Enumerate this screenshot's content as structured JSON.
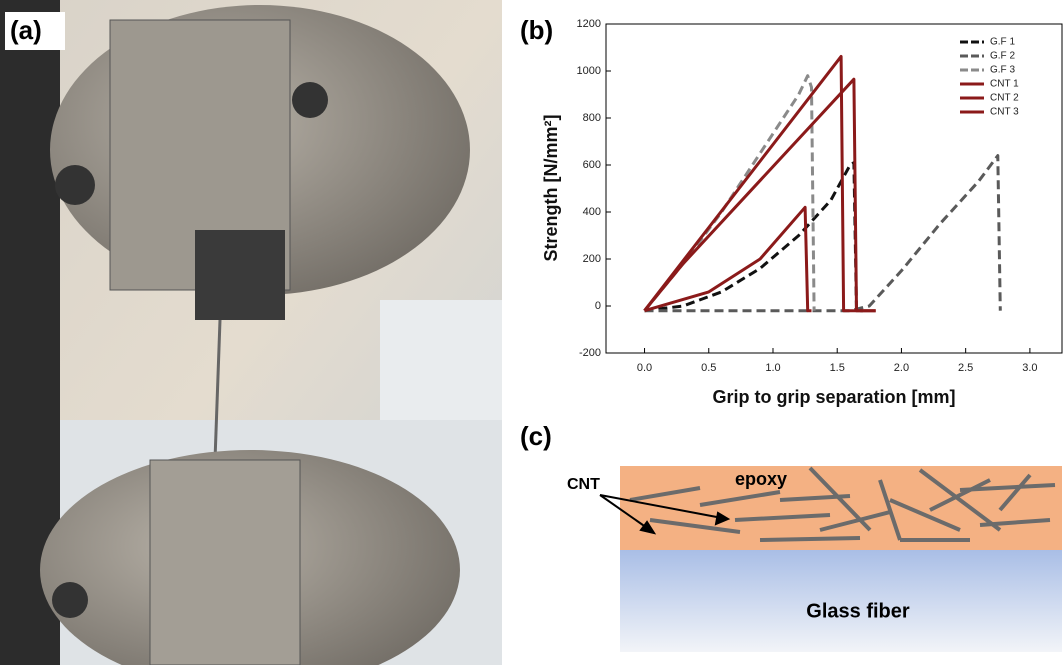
{
  "panel_labels": [
    "(a)",
    "(b)",
    "(c)"
  ],
  "chart_data": {
    "type": "line",
    "xlabel": "Grip to grip separation [mm]",
    "ylabel": "Strength [N/mm²]",
    "xlim": [
      -0.3,
      3.25
    ],
    "ylim": [
      -200,
      1200
    ],
    "xticks": [
      {
        "value": 0,
        "label": "0.0"
      },
      {
        "value": 0.5,
        "label": "0.5"
      },
      {
        "value": 1,
        "label": "1.0"
      },
      {
        "value": 1.5,
        "label": "1.5"
      },
      {
        "value": 2,
        "label": "2.0"
      },
      {
        "value": 2.5,
        "label": "2.5"
      },
      {
        "value": 3,
        "label": "3.0"
      }
    ],
    "yticks": [
      -200,
      0,
      200,
      400,
      600,
      800,
      1000,
      1200
    ],
    "legend": "upper right",
    "series": [
      {
        "name": "G.F 1",
        "color": "#111111",
        "line_style": "dashed",
        "x": [
          0,
          0.3,
          0.6,
          0.9,
          1.2,
          1.45,
          1.6,
          1.63,
          1.65,
          1.7
        ],
        "values": [
          -20,
          0,
          60,
          160,
          300,
          450,
          600,
          610,
          -20,
          -20
        ]
      },
      {
        "name": "G.F 2",
        "color": "#5a5a5a",
        "line_style": "dashed",
        "x": [
          0,
          1.6,
          1.75,
          2.0,
          2.3,
          2.6,
          2.75,
          2.77
        ],
        "values": [
          -20,
          -20,
          0,
          150,
          350,
          530,
          640,
          -20
        ]
      },
      {
        "name": "G.F 3",
        "color": "#8a8a8a",
        "line_style": "dashed",
        "x": [
          0,
          0.3,
          0.6,
          0.9,
          1.2,
          1.27,
          1.3,
          1.32
        ],
        "values": [
          -20,
          180,
          400,
          650,
          900,
          980,
          930,
          -20
        ]
      },
      {
        "name": "CNT 1",
        "color": "#8b1a1a",
        "line_style": "solid",
        "x": [
          0,
          1.53,
          1.55,
          1.8
        ],
        "values": [
          -20,
          1062,
          -20,
          -20
        ]
      },
      {
        "name": "CNT 2",
        "color": "#8b1a1a",
        "line_style": "solid",
        "x": [
          0,
          0.3,
          1.63,
          1.65,
          1.8
        ],
        "values": [
          -20,
          180,
          965,
          -20,
          -20
        ]
      },
      {
        "name": "CNT 3",
        "color": "#8b1a1a",
        "line_style": "solid",
        "x": [
          0,
          0.5,
          0.9,
          1.25,
          1.27,
          1.3
        ],
        "values": [
          -20,
          60,
          200,
          420,
          -20,
          -20
        ]
      }
    ]
  },
  "diagram": {
    "cnt_label": "CNT",
    "matrix_label": "epoxy",
    "fiber_label": "Glass fiber"
  }
}
